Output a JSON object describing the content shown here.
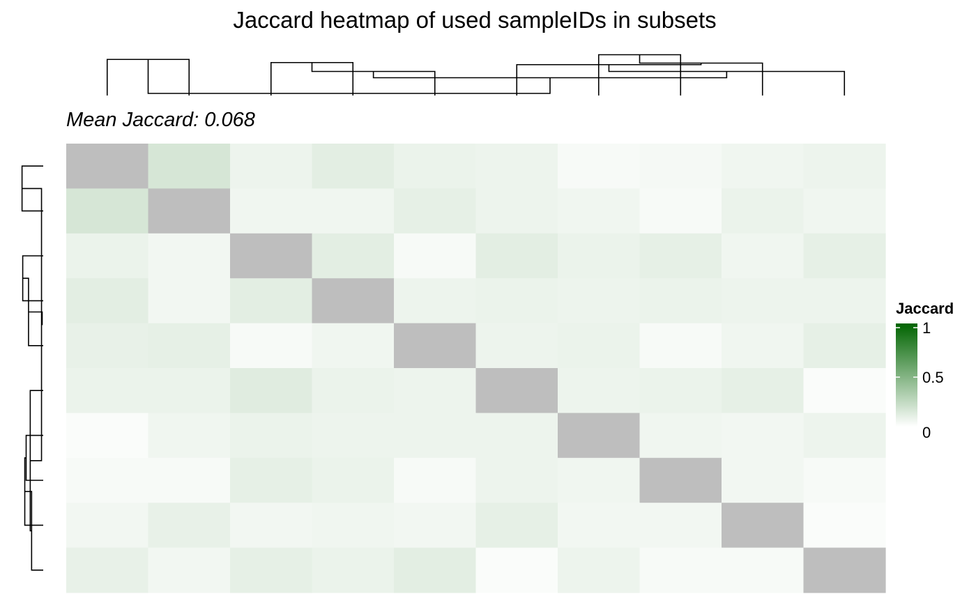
{
  "chart_data": {
    "type": "heatmap",
    "title": "Jaccard heatmap of used sampleIDs in subsets",
    "subtitle": "Mean Jaccard: 0.068",
    "n": 10,
    "diagonal_color": "#bebebe",
    "color_scale": {
      "low": "#ffffff",
      "high": "#006400",
      "min": 0,
      "max": 1
    },
    "legend": {
      "title": "Jaccard",
      "placement": "right",
      "ticks": [
        "1",
        "0.5",
        "0"
      ],
      "tick_values": [
        1,
        0.5,
        0
      ]
    },
    "matrix": [
      [
        null,
        0.16,
        0.07,
        0.11,
        0.08,
        0.07,
        0.03,
        0.04,
        0.06,
        0.07
      ],
      [
        0.16,
        null,
        0.06,
        0.06,
        0.1,
        0.07,
        0.06,
        0.03,
        0.08,
        0.06
      ],
      [
        0.08,
        0.05,
        null,
        0.11,
        0.03,
        0.11,
        0.08,
        0.1,
        0.06,
        0.1
      ],
      [
        0.11,
        0.05,
        0.11,
        null,
        0.07,
        0.08,
        0.07,
        0.08,
        0.07,
        0.07
      ],
      [
        0.09,
        0.1,
        0.03,
        0.06,
        null,
        0.07,
        0.08,
        0.03,
        0.06,
        0.1
      ],
      [
        0.08,
        0.08,
        0.12,
        0.08,
        0.07,
        null,
        0.07,
        0.08,
        0.1,
        0.02
      ],
      [
        0.02,
        0.06,
        0.08,
        0.07,
        0.07,
        0.07,
        null,
        0.06,
        0.05,
        0.07
      ],
      [
        0.03,
        0.03,
        0.1,
        0.08,
        0.03,
        0.07,
        0.06,
        null,
        0.05,
        0.03
      ],
      [
        0.05,
        0.09,
        0.05,
        0.06,
        0.05,
        0.1,
        0.05,
        0.05,
        null,
        0.02
      ],
      [
        0.09,
        0.05,
        0.1,
        0.08,
        0.11,
        0.02,
        0.07,
        0.03,
        0.03,
        null
      ]
    ],
    "row_dendrogram": {
      "merges": [
        [
          0,
          1,
          0.62
        ],
        [
          6,
          7,
          0.5
        ],
        [
          2,
          3,
          0.6
        ],
        [
          -2,
          8,
          0.54
        ],
        [
          -4,
          9,
          0.34
        ],
        [
          -3,
          4,
          0.43
        ],
        [
          5,
          -5,
          0.38
        ],
        [
          -1,
          -7,
          0.05
        ],
        [
          -6,
          -8,
          0.03
        ]
      ]
    },
    "col_dendrogram": {
      "merges": [
        [
          0,
          1,
          0.69
        ],
        [
          6,
          7,
          0.78
        ],
        [
          2,
          3,
          0.63
        ],
        [
          -2,
          8,
          0.62
        ],
        [
          -3,
          4,
          0.46
        ],
        [
          5,
          -4,
          0.59
        ],
        [
          -6,
          9,
          0.46
        ],
        [
          -5,
          -7,
          0.34
        ],
        [
          -1,
          -8,
          0.04
        ]
      ]
    }
  }
}
